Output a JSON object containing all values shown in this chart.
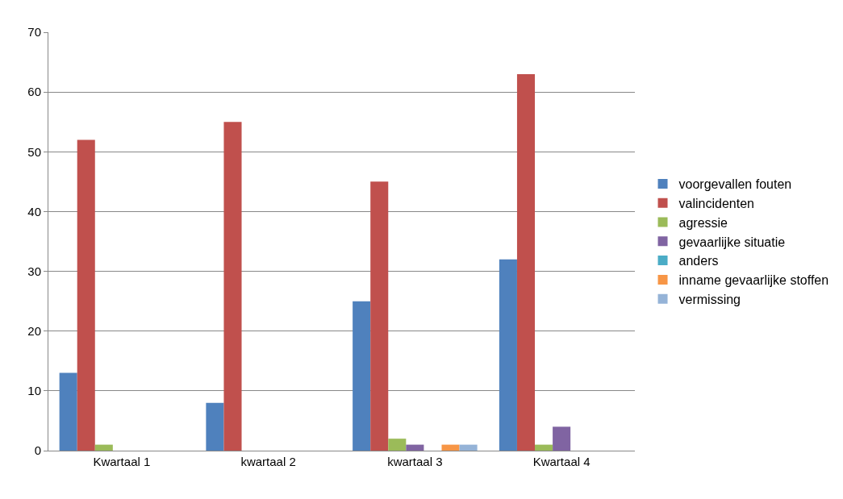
{
  "chart_data": {
    "type": "bar",
    "categories": [
      "Kwartaal 1",
      "kwartaal 2",
      "kwartaal 3",
      "Kwartaal 4"
    ],
    "series": [
      {
        "name": "voorgevallen fouten",
        "color": "#4f81bd",
        "values": [
          13,
          8,
          25,
          32
        ]
      },
      {
        "name": "valincidenten",
        "color": "#c0504d",
        "values": [
          52,
          55,
          45,
          63
        ]
      },
      {
        "name": "agressie",
        "color": "#9bbb59",
        "values": [
          1,
          0,
          2,
          1
        ]
      },
      {
        "name": "gevaarlijke situatie",
        "color": "#8064a2",
        "values": [
          0,
          0,
          1,
          4
        ]
      },
      {
        "name": "anders",
        "color": "#4bacc6",
        "values": [
          0,
          0,
          0,
          0
        ]
      },
      {
        "name": "inname gevaarlijke stoffen",
        "color": "#f79646",
        "values": [
          0,
          0,
          1,
          0
        ]
      },
      {
        "name": "vermissing",
        "color": "#95b3d7",
        "values": [
          0,
          0,
          1,
          0
        ]
      }
    ],
    "ylim": [
      0,
      70
    ],
    "yticks": [
      0,
      10,
      20,
      30,
      40,
      50,
      60,
      70
    ],
    "grid": "y",
    "legend": "right"
  }
}
